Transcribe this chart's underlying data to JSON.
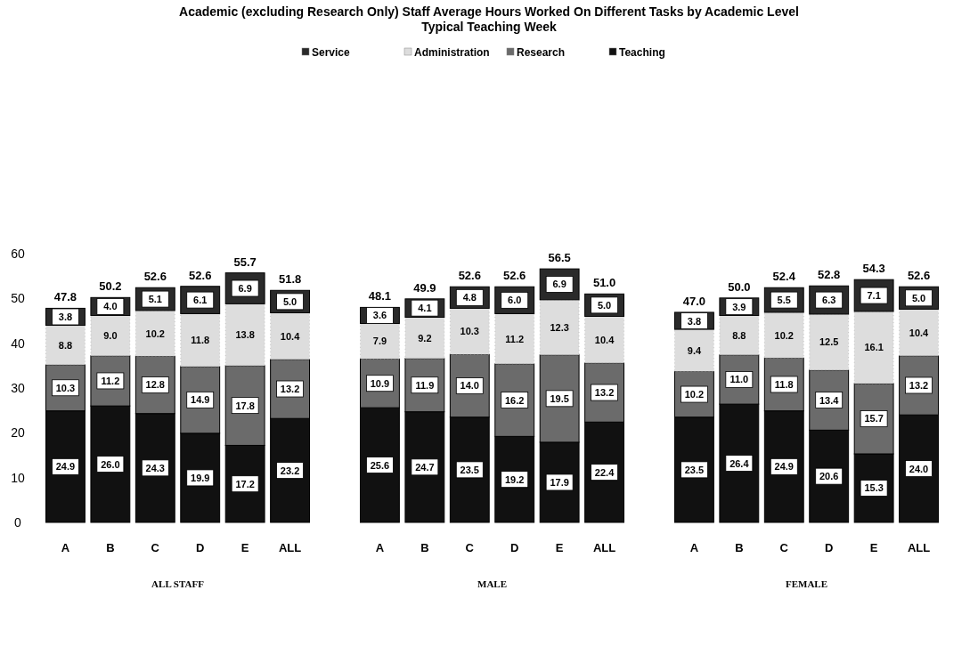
{
  "chart_data": {
    "type": "bar",
    "stacked": true,
    "title": "Academic (excluding Research Only) Staff Average Hours Worked On Different Tasks  by Academic Level",
    "subtitle": "Typical Teaching Week",
    "legend": "top",
    "categories": [
      "A",
      "B",
      "C",
      "D",
      "E",
      "ALL",
      null,
      "A",
      "B",
      "C",
      "D",
      "E",
      "ALL",
      null,
      "A",
      "B",
      "C",
      "D",
      "E",
      "ALL"
    ],
    "annotations": [
      "ALL STAFF",
      "MALE",
      "FEMALE"
    ],
    "ylim": [
      0,
      60
    ],
    "yticks": [
      0,
      10,
      20,
      30,
      40,
      50,
      60
    ],
    "totals": [
      "47.8",
      "50.2",
      "52.6",
      "52.6",
      "55.7",
      "51.8",
      null,
      "48.1",
      "49.9",
      "52.6",
      "52.6",
      "56.5",
      "51.0",
      null,
      "47.0",
      "50.0",
      "52.4",
      "52.8",
      "54.3",
      "52.6"
    ],
    "series": [
      {
        "name": "Teaching",
        "color": "#111111",
        "values": [
          24.9,
          26.0,
          24.3,
          19.9,
          17.2,
          23.2,
          null,
          25.6,
          24.7,
          23.5,
          19.2,
          17.9,
          22.4,
          null,
          23.5,
          26.4,
          24.9,
          20.6,
          15.3,
          24.0
        ],
        "value_labels": [
          "24.9",
          "26.0",
          "24.3",
          "19.9",
          "17.2",
          "23.2",
          null,
          "25.6",
          "24.7",
          "23.5",
          "19.2",
          "17.9",
          "22.4",
          null,
          "23.5",
          "26.4",
          "24.9",
          "20.6",
          "15.3",
          "24.0"
        ]
      },
      {
        "name": "Research",
        "color": "#6b6b6b",
        "values": [
          10.3,
          11.2,
          12.8,
          14.9,
          17.8,
          13.2,
          null,
          10.9,
          11.9,
          14.0,
          16.2,
          19.5,
          13.2,
          null,
          10.2,
          11.0,
          11.8,
          13.4,
          15.7,
          13.2
        ],
        "value_labels": [
          "10.3",
          "11.2",
          "12.8",
          "14.9",
          "17.8",
          "13.2",
          null,
          "10.9",
          "11.9",
          "14.0",
          "16.2",
          "19.5",
          "13.2",
          null,
          "10.2",
          "11.0",
          "11.8",
          "13.4",
          "15.7",
          "13.2"
        ]
      },
      {
        "name": "Administration",
        "color": "#dddddd",
        "values": [
          8.8,
          9.0,
          10.2,
          11.8,
          13.8,
          10.4,
          null,
          7.9,
          9.2,
          10.3,
          11.2,
          12.3,
          10.4,
          null,
          9.4,
          8.8,
          10.2,
          12.5,
          16.1,
          10.4
        ],
        "value_labels": [
          "8.8",
          "9.0",
          "10.2",
          "11.8",
          "13.8",
          "10.4",
          null,
          "7.9",
          "9.2",
          "10.3",
          "11.2",
          "12.3",
          "10.4",
          null,
          "9.4",
          "8.8",
          "10.2",
          "12.5",
          "16.1",
          "10.4"
        ]
      },
      {
        "name": "Service",
        "color": "#2a2a2a",
        "values": [
          3.8,
          4.0,
          5.1,
          6.1,
          6.9,
          5.0,
          null,
          3.6,
          4.1,
          4.8,
          6.0,
          6.9,
          5.0,
          null,
          3.8,
          3.9,
          5.5,
          6.3,
          7.1,
          5.0
        ],
        "value_labels": [
          "3.8",
          "4.0",
          "5.1",
          "6.1",
          "6.9",
          "5.0",
          null,
          "3.6",
          "4.1",
          "4.8",
          "6.0",
          "6.9",
          "5.0",
          null,
          "3.8",
          "3.9",
          "5.5",
          "6.3",
          "7.1",
          "5.0"
        ]
      }
    ]
  }
}
